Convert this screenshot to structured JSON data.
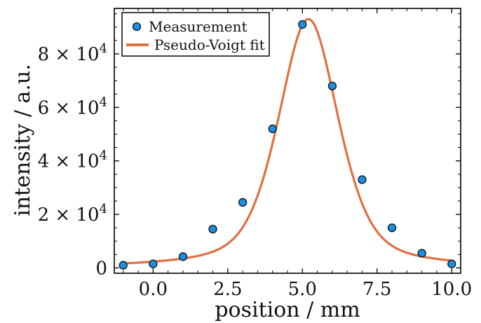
{
  "chart_data": {
    "type": "scatter",
    "xlabel": "position / mm",
    "ylabel": "intensity / a.u.",
    "xlim": [
      -1.3,
      10.3
    ],
    "ylim": [
      -2000,
      97000
    ],
    "xticks": [
      0.0,
      2.5,
      5.0,
      7.5,
      10.0
    ],
    "xtick_labels": [
      "0.0",
      "2.5",
      "5.0",
      "7.5",
      "10.0"
    ],
    "yticks": [
      0,
      20000,
      40000,
      60000,
      80000
    ],
    "ytick_mantissas": [
      "0",
      "2",
      "4",
      "6",
      "8"
    ],
    "ytick_times": "×",
    "ytick_base": "10",
    "ytick_exponent": "4",
    "grid": false,
    "legend_position": "top-left",
    "series": [
      {
        "name": "Measurement",
        "kind": "points",
        "color": "#1a8fe0",
        "x": [
          -1,
          0,
          1,
          2,
          3,
          4,
          5,
          6,
          7,
          8,
          9,
          10
        ],
        "y": [
          1000,
          1500,
          4200,
          14500,
          24500,
          52000,
          91000,
          68000,
          33000,
          15000,
          5500,
          1500
        ]
      },
      {
        "name": "Pseudo-Voigt fit",
        "kind": "line",
        "color": "#e07040",
        "model": {
          "amplitude": 93000,
          "center": 5.2,
          "fwhm": 2.4,
          "eta": 0.5,
          "offset": 0
        },
        "x_range": [
          -1,
          10
        ]
      }
    ]
  }
}
